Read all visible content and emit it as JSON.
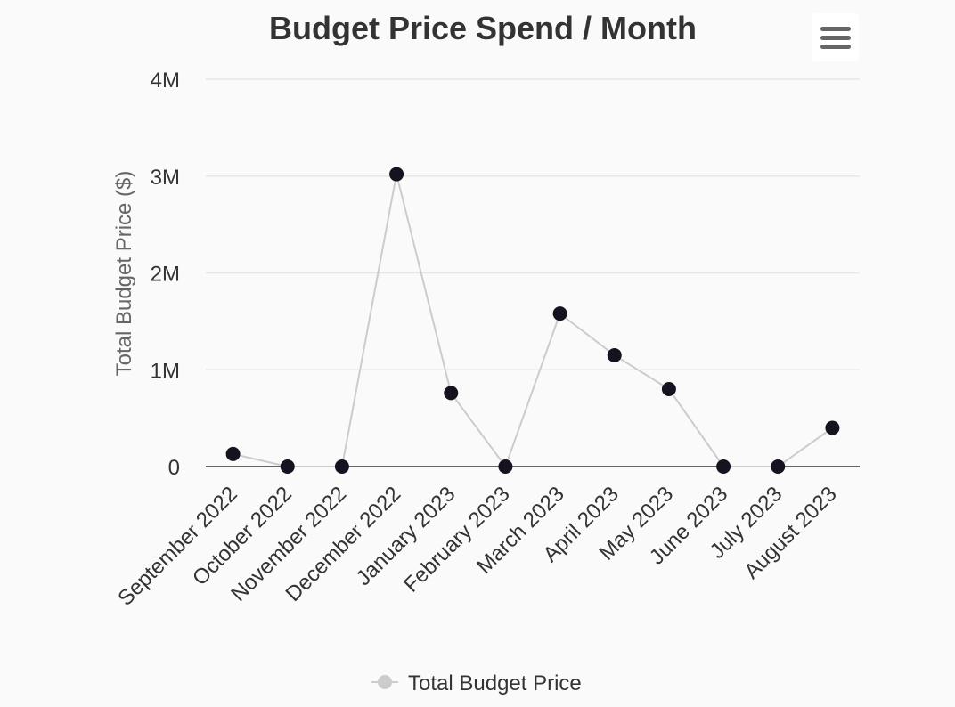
{
  "menu": {
    "icon": "hamburger-menu-icon"
  },
  "chart_data": {
    "type": "line",
    "title": "Budget Price Spend / Month",
    "xlabel": "",
    "ylabel": "Total Budget Price ($)",
    "categories": [
      "September 2022",
      "October 2022",
      "November 2022",
      "December 2022",
      "January 2023",
      "February 2023",
      "March 2023",
      "April 2023",
      "May 2023",
      "June 2023",
      "July 2023",
      "August 2023"
    ],
    "series": [
      {
        "name": "Total Budget Price",
        "values": [
          130000,
          0,
          0,
          3020000,
          760000,
          0,
          1580000,
          1150000,
          800000,
          0,
          0,
          400000
        ]
      }
    ],
    "ylim": [
      0,
      4000000
    ],
    "yticks": [
      0,
      1000000,
      2000000,
      3000000,
      4000000
    ],
    "ytick_labels": [
      "0",
      "1M",
      "2M",
      "3M",
      "4M"
    ],
    "grid": true,
    "legend": "bottom-center",
    "colors": {
      "line": "#cccccc",
      "marker": "#17121f",
      "grid": "#e6e6e6",
      "axis": "#333333",
      "title": "#333333",
      "text": "#333333",
      "ylabel": "#666666",
      "legend_symbol": "#cccccc"
    }
  }
}
